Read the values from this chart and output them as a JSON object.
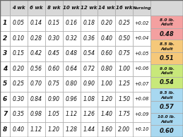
{
  "col_headers": [
    "4 wk",
    "6 wk",
    "8 wk",
    "10 wk",
    "12 wk",
    "14 wk",
    "16 wk",
    "Nursing"
  ],
  "row_labels": [
    "1",
    "2",
    "3",
    "4",
    "5",
    "6",
    "7",
    "8"
  ],
  "table_data": [
    [
      "0.05",
      "0.14",
      "0.15",
      "0.16",
      "0.18",
      "0.20",
      "0.25",
      "+0.02"
    ],
    [
      "0.10",
      "0.28",
      "0.30",
      "0.32",
      "0.36",
      "0.40",
      "0.50",
      "+0.04"
    ],
    [
      "0.15",
      "0.42",
      "0.45",
      "0.48",
      "0.54",
      "0.60",
      "0.75",
      "+0.05"
    ],
    [
      "0.20",
      "0.56",
      "0.60",
      "0.64",
      "0.72",
      "0.80",
      "1.00",
      "+0.06"
    ],
    [
      "0.25",
      "0.70",
      "0.75",
      "0.80",
      "0.90",
      "1.00",
      "1.25",
      "+0.07"
    ],
    [
      "0.30",
      "0.84",
      "0.90",
      "0.96",
      "1.08",
      "1.20",
      "1.50",
      "+0.08"
    ],
    [
      "0.35",
      "0.98",
      "1.05",
      "1.12",
      "1.26",
      "1.40",
      "1.75",
      "+0.09"
    ],
    [
      "0.40",
      "1.12",
      "1.20",
      "1.28",
      "1.44",
      "1.60",
      "2.00",
      "+0.10"
    ]
  ],
  "right_labels": [
    [
      "8.0 lb.",
      "Adult",
      "0.48"
    ],
    [
      "8.5 lb.",
      "Adult",
      "0.51"
    ],
    [
      "9.0 lb.",
      "Adult",
      "0.54"
    ],
    [
      "9.5 lb.",
      "Adult",
      "0.57"
    ],
    [
      "10.0 lb.",
      "Adult",
      "0.60"
    ]
  ],
  "right_colors": [
    "#f4a0a0",
    "#f5c87a",
    "#c8e87a",
    "#a8d8f0",
    "#a8d8f0"
  ],
  "table_bg": "#ffffff",
  "header_bg": "#d8d8d8",
  "border_color": "#aaaaaa",
  "text_color": "#111111"
}
